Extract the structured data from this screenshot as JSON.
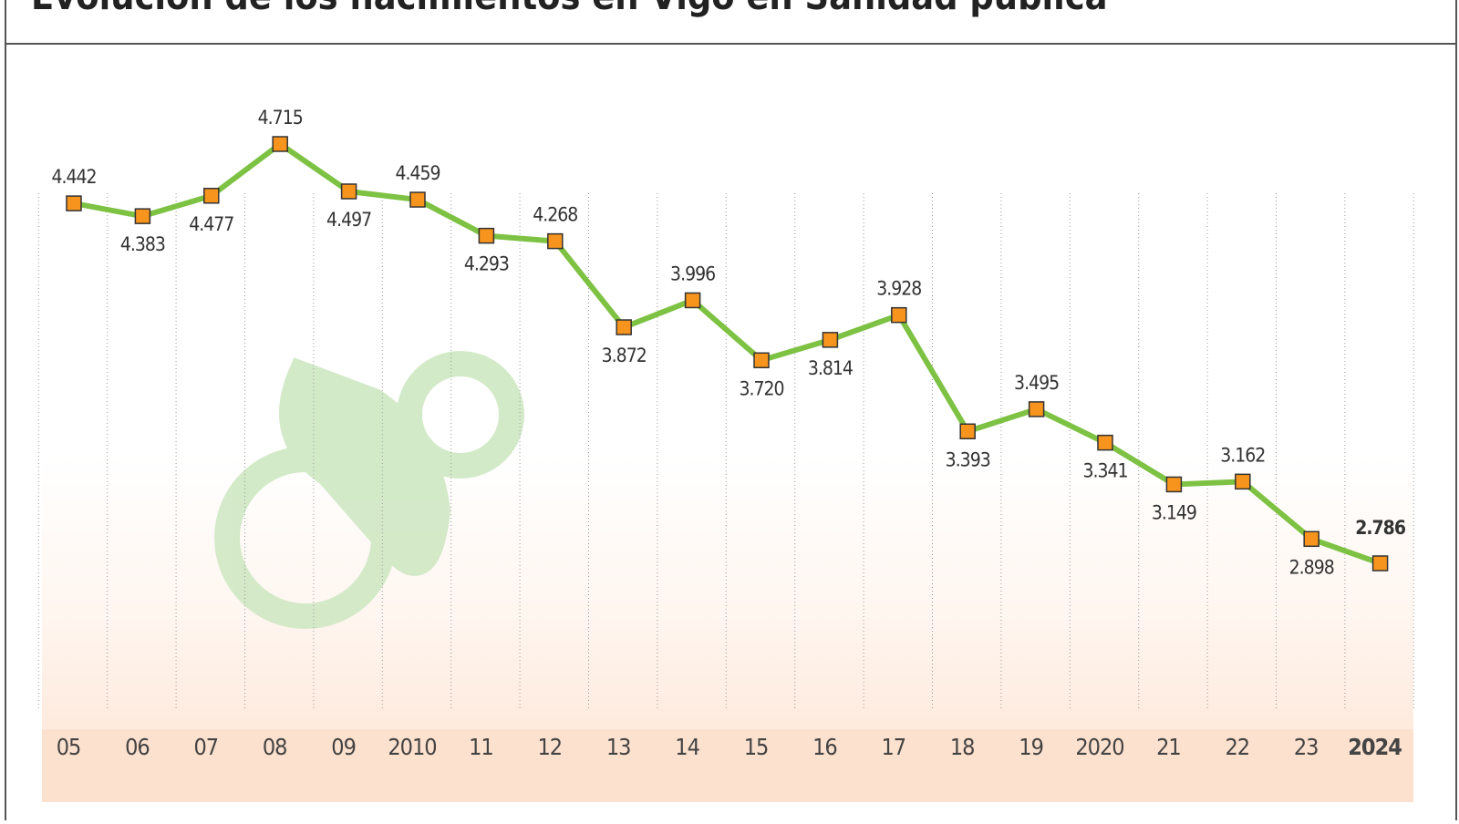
{
  "chart_data": {
    "type": "line",
    "title": "Evolución de los nacimientos en Vigo en Sanidad pública",
    "categories": [
      "05",
      "06",
      "07",
      "08",
      "09",
      "2010",
      "11",
      "12",
      "13",
      "14",
      "15",
      "16",
      "17",
      "18",
      "19",
      "2020",
      "21",
      "22",
      "23",
      "2024"
    ],
    "series": [
      {
        "color": "#7dc242",
        "values": [
          4442,
          4383,
          4477,
          4715,
          4497,
          4459,
          4293,
          4268,
          3872,
          3996,
          3720,
          3814,
          3928,
          3393,
          3495,
          3341,
          3149,
          3162,
          2898,
          2786
        ],
        "value_labels": [
          "4.442",
          "4.383",
          "4.477",
          "4.715",
          "4.497",
          "4.459",
          "4.293",
          "4.268",
          "3.872",
          "3.996",
          "3.720",
          "3.814",
          "3.928",
          "3.393",
          "3.495",
          "3.341",
          "3.149",
          "3.162",
          "2.898",
          "2.786"
        ],
        "marker_color": "#f7941d"
      }
    ]
  }
}
